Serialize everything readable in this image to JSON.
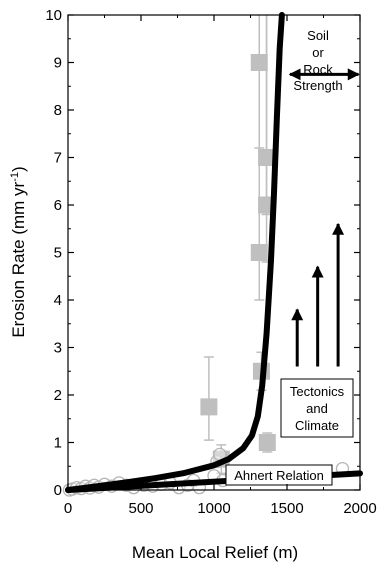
{
  "chart_data": {
    "type": "scatter",
    "xlabel": "Mean Local Relief (m)",
    "ylabel_main": "Erosion Rate (mm yr",
    "ylabel_sup": "-1",
    "ylabel_close": ")",
    "xlim": [
      0,
      2000
    ],
    "ylim": [
      0,
      10
    ],
    "x_ticks": [
      "0",
      "500",
      "1000",
      "1500",
      "2000"
    ],
    "y_ticks": [
      "0",
      "1",
      "2",
      "3",
      "4",
      "5",
      "6",
      "7",
      "8",
      "9",
      "10"
    ],
    "grid": false,
    "series": [
      {
        "marker": "gray-square",
        "points": [
          {
            "x": 965,
            "y": 1.75,
            "err_low": 1.05,
            "err_high": 2.8
          },
          {
            "x": 1050,
            "y": 0.65,
            "err_low": 0.35,
            "err_high": 0.95
          },
          {
            "x": 1310,
            "y": 9.0,
            "err_low": 7.2,
            "err_high": 10
          },
          {
            "x": 1310,
            "y": 5.0,
            "err_low": 4.0,
            "err_high": 10
          },
          {
            "x": 1325,
            "y": 2.5,
            "err_low": 2.1,
            "err_high": 2.9
          },
          {
            "x": 1360,
            "y": 7.0,
            "err_low": 5.8,
            "err_high": 10
          },
          {
            "x": 1360,
            "y": 6.0,
            "err_low": 4.8,
            "err_high": 10
          },
          {
            "x": 1365,
            "y": 1.0,
            "err_low": 0.8,
            "err_high": 1.2
          }
        ]
      },
      {
        "marker": "open-circle",
        "points": [
          {
            "x": 10,
            "y": 0.0
          },
          {
            "x": 30,
            "y": 0.02
          },
          {
            "x": 60,
            "y": 0.05
          },
          {
            "x": 90,
            "y": 0.03
          },
          {
            "x": 120,
            "y": 0.08
          },
          {
            "x": 150,
            "y": 0.04
          },
          {
            "x": 180,
            "y": 0.1
          },
          {
            "x": 210,
            "y": 0.06
          },
          {
            "x": 250,
            "y": 0.12
          },
          {
            "x": 300,
            "y": 0.08
          },
          {
            "x": 350,
            "y": 0.15
          },
          {
            "x": 400,
            "y": 0.1
          },
          {
            "x": 450,
            "y": 0.05
          },
          {
            "x": 520,
            "y": 0.1
          },
          {
            "x": 580,
            "y": 0.08
          },
          {
            "x": 640,
            "y": 0.12
          },
          {
            "x": 700,
            "y": 0.15
          },
          {
            "x": 760,
            "y": 0.05
          },
          {
            "x": 820,
            "y": 0.1
          },
          {
            "x": 860,
            "y": 0.2
          },
          {
            "x": 900,
            "y": 0.05
          },
          {
            "x": 1000,
            "y": 0.3
          },
          {
            "x": 1020,
            "y": 0.6
          },
          {
            "x": 1040,
            "y": 0.75
          },
          {
            "x": 1060,
            "y": 0.2
          },
          {
            "x": 1880,
            "y": 0.45
          }
        ]
      }
    ],
    "curves": [
      {
        "name": "threshold",
        "points": [
          [
            0,
            0
          ],
          [
            200,
            0.08
          ],
          [
            400,
            0.16
          ],
          [
            600,
            0.25
          ],
          [
            800,
            0.36
          ],
          [
            1000,
            0.52
          ],
          [
            1100,
            0.65
          ],
          [
            1200,
            0.88
          ],
          [
            1260,
            1.15
          ],
          [
            1300,
            1.55
          ],
          [
            1330,
            2.2
          ],
          [
            1360,
            3.3
          ],
          [
            1390,
            4.8
          ],
          [
            1410,
            6.2
          ],
          [
            1430,
            7.8
          ],
          [
            1450,
            9.3
          ],
          [
            1465,
            10
          ]
        ]
      },
      {
        "name": "ahnert",
        "points": [
          [
            0,
            0
          ],
          [
            2000,
            0.35
          ]
        ]
      }
    ],
    "annotations": {
      "soil_line1": "Soil",
      "soil_line2": "or",
      "soil_line3": "Rock",
      "soil_line4": "Strength",
      "tectonics_line1": "Tectonics",
      "tectonics_line2": "and",
      "tectonics_line3": "Climate",
      "ahnert": "Ahnert Relation"
    },
    "arrows": {
      "horizontal": {
        "x1": 1520,
        "x2": 1990,
        "y": 8.75
      },
      "vertical": [
        {
          "x": 1570,
          "y1": 2.6,
          "y2": 3.8
        },
        {
          "x": 1710,
          "y1": 2.6,
          "y2": 4.7
        },
        {
          "x": 1850,
          "y1": 2.6,
          "y2": 5.6
        }
      ]
    },
    "colors": {
      "square": "#bfbfbf",
      "errorbar": "#bfbfbf",
      "circle": "#b5b5b5",
      "curve": "#000000"
    }
  }
}
